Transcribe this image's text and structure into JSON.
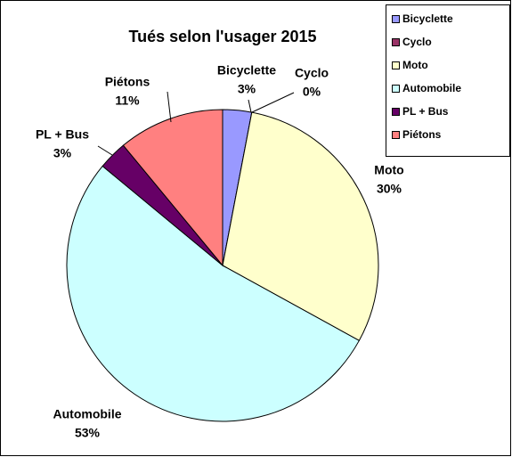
{
  "chart_data": {
    "type": "pie",
    "title": "Tués selon l'usager 2015",
    "categories": [
      "Bicyclette",
      "Cyclo",
      "Moto",
      "Automobile",
      "PL + Bus",
      "Piétons"
    ],
    "values": [
      3,
      0,
      30,
      53,
      3,
      11
    ],
    "value_labels": [
      "3%",
      "0%",
      "30%",
      "53%",
      "3%",
      "11%"
    ],
    "colors": [
      "#9999ff",
      "#993366",
      "#ffffcc",
      "#ccffff",
      "#660066",
      "#ff8080"
    ],
    "legend": "right"
  }
}
